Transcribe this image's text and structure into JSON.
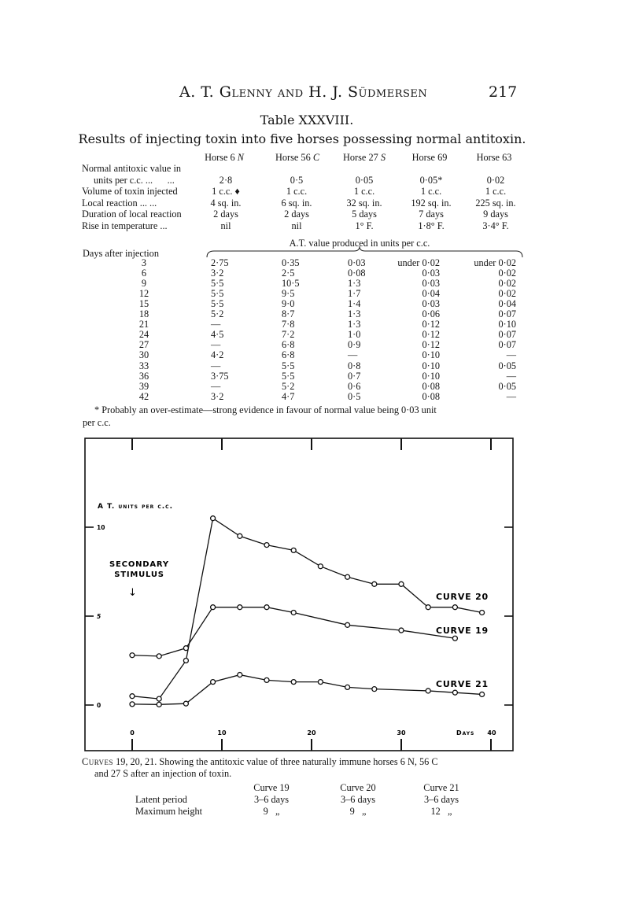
{
  "header": {
    "running_title": "A. T. Glenny and H. J. Südmersen",
    "page_number": "217"
  },
  "table": {
    "title": "Table XXXVIII.",
    "caption": "Results of injecting toxin into five horses possessing normal antitoxin.",
    "columns": [
      {
        "name": "Horse 6 ",
        "suffix": "N"
      },
      {
        "name": "Horse 56 ",
        "suffix": "C"
      },
      {
        "name": "Horse 27 ",
        "suffix": "S"
      },
      {
        "name": "Horse 69",
        "suffix": ""
      },
      {
        "name": "Horse 63",
        "suffix": ""
      }
    ],
    "properties": [
      {
        "label": "Normal antitoxic value in",
        "label2": "units per c.c. ...      ...",
        "values": [
          "2·8",
          "0·5",
          "0·05",
          "0·05*",
          "0·02"
        ]
      },
      {
        "label": "Volume of toxin injected",
        "values": [
          "1 c.c. ♦",
          "1 c.c.",
          "1 c.c.",
          "1 c.c.",
          "1 c.c."
        ]
      },
      {
        "label": "Local reaction  ...      ...",
        "values": [
          "4 sq. in.",
          "6 sq. in.",
          "32 sq. in.",
          "192 sq. in.",
          "225 sq. in."
        ]
      },
      {
        "label": "Duration of local reaction",
        "values": [
          "2 days",
          "2 days",
          "5 days",
          "7 days",
          "9 days"
        ]
      },
      {
        "label": "Rise in temperature     ...",
        "values": [
          "nil",
          "nil",
          "1° F.",
          "1·8° F.",
          "3·4° F."
        ]
      }
    ],
    "group_heading": "A.T. value produced in units per c.c.",
    "days_heading": "Days after injection",
    "rows": [
      {
        "day": "3",
        "values": [
          "2·75",
          "0·35",
          "0·03",
          "under 0·02",
          "under 0·02"
        ]
      },
      {
        "day": "6",
        "values": [
          "3·2",
          "2·5",
          "0·08",
          "0·03",
          "0·02"
        ]
      },
      {
        "day": "9",
        "values": [
          "5·5",
          "10·5",
          "1·3",
          "0·03",
          "0·02"
        ]
      },
      {
        "day": "12",
        "values": [
          "5·5",
          "9·5",
          "1·7",
          "0·04",
          "0·02"
        ]
      },
      {
        "day": "15",
        "values": [
          "5·5",
          "9·0",
          "1·4",
          "0·03",
          "0·04"
        ]
      },
      {
        "day": "18",
        "values": [
          "5·2",
          "8·7",
          "1·3",
          "0·06",
          "0·07"
        ]
      },
      {
        "day": "21",
        "values": [
          "—",
          "7·8",
          "1·3",
          "0·12",
          "0·10"
        ]
      },
      {
        "day": "24",
        "values": [
          "4·5",
          "7·2",
          "1·0",
          "0·12",
          "0·07"
        ]
      },
      {
        "day": "27",
        "values": [
          "—",
          "6·8",
          "0·9",
          "0·12",
          "0·07"
        ]
      },
      {
        "day": "30",
        "values": [
          "4·2",
          "6·8",
          "—",
          "0·10",
          "—"
        ]
      },
      {
        "day": "33",
        "values": [
          "—",
          "5·5",
          "0·8",
          "0·10",
          "0·05"
        ]
      },
      {
        "day": "36",
        "values": [
          "3·75",
          "5·5",
          "0·7",
          "0·10",
          "—"
        ]
      },
      {
        "day": "39",
        "values": [
          "—",
          "5·2",
          "0·6",
          "0·08",
          "0·05"
        ]
      },
      {
        "day": "42",
        "values": [
          "3·2",
          "4·7",
          "0·5",
          "0·08",
          "—"
        ]
      }
    ],
    "footnote_line1": "* Probably an over-estimate—strong evidence in favour of normal value being 0·03 unit",
    "footnote_line2": "per c.c."
  },
  "chart_data": {
    "type": "line",
    "ylabel": "A T. units per c.c.",
    "xlabel": "Days",
    "xlim": [
      0,
      40
    ],
    "ylim": [
      0,
      10
    ],
    "x_ticks": [
      "0",
      "10",
      "20",
      "30",
      "40"
    ],
    "y_ticks": [
      "0",
      "5",
      "10"
    ],
    "annotation": {
      "line1": "Secondary",
      "line2": "Stimulus",
      "arrow": "↓",
      "day": 0
    },
    "grid": false,
    "series": [
      {
        "name": "Curve 20",
        "x": [
          0,
          3,
          6,
          9,
          12,
          15,
          18,
          21,
          24,
          27,
          30,
          33,
          36,
          39
        ],
        "y": [
          0.5,
          0.35,
          2.5,
          10.5,
          9.5,
          9.0,
          8.7,
          7.8,
          7.2,
          6.8,
          6.8,
          5.5,
          5.5,
          5.2
        ]
      },
      {
        "name": "Curve 19",
        "x": [
          0,
          3,
          6,
          9,
          12,
          15,
          18,
          24,
          30,
          36
        ],
        "y": [
          2.8,
          2.75,
          3.2,
          5.5,
          5.5,
          5.5,
          5.2,
          4.5,
          4.2,
          3.75
        ]
      },
      {
        "name": "Curve 21",
        "x": [
          0,
          3,
          6,
          9,
          12,
          15,
          18,
          21,
          24,
          27,
          33,
          36,
          39
        ],
        "y": [
          0.05,
          0.03,
          0.08,
          1.3,
          1.7,
          1.4,
          1.3,
          1.3,
          1.0,
          0.9,
          0.8,
          0.7,
          0.6
        ]
      }
    ]
  },
  "figure_caption": {
    "lead": "Curves",
    "line1": " 19, 20, 21. Showing the antitoxic value of three naturally immune horses 6 N, 56 C",
    "line2": "and 27 S after an injection of toxin.",
    "columns": [
      "Curve 19",
      "Curve 20",
      "Curve 21"
    ],
    "rows": [
      {
        "label": "Latent period",
        "values": [
          "3–6 days",
          "3–6 days",
          "3–6 days"
        ]
      },
      {
        "label": "Maximum height",
        "values": [
          "9   „",
          "9   „",
          "12   „"
        ]
      }
    ]
  }
}
